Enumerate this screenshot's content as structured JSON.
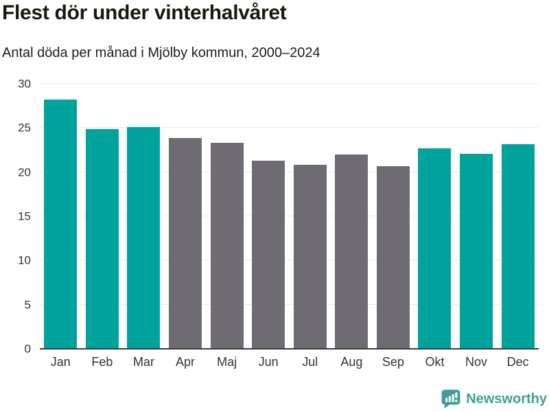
{
  "header": {
    "title": "Flest dör under vinterhalvåret",
    "subtitle": "Antal döda per månad i Mjölby kommun, 2000–2024"
  },
  "chart_data": {
    "type": "bar",
    "title": "Flest dör under vinterhalvåret",
    "subtitle": "Antal döda per månad i Mjölby kommun, 2000–2024",
    "categories": [
      "Jan",
      "Feb",
      "Mar",
      "Apr",
      "Maj",
      "Jun",
      "Jul",
      "Aug",
      "Sep",
      "Okt",
      "Nov",
      "Dec"
    ],
    "values": [
      28.2,
      24.9,
      25.1,
      23.9,
      23.3,
      21.3,
      20.8,
      22.0,
      20.7,
      22.7,
      22.1,
      23.2
    ],
    "bar_colors": [
      "#00a39c",
      "#00a39c",
      "#00a39c",
      "#6e6c72",
      "#6e6c72",
      "#6e6c72",
      "#6e6c72",
      "#6e6c72",
      "#6e6c72",
      "#00a39c",
      "#00a39c",
      "#00a39c"
    ],
    "highlight_color": "#00a39c",
    "base_color": "#6e6c72",
    "xlabel": "",
    "ylabel": "",
    "ylim": [
      0,
      30
    ],
    "yticks": [
      0,
      5,
      10,
      15,
      20,
      25,
      30
    ],
    "grid": true,
    "legend": false,
    "gridline_color": "#e7e7e7",
    "axis_line_color": "#3b3b3b"
  },
  "footer": {
    "brand": "Newsworthy",
    "brand_color": "#3f9e9a",
    "logo_icon": "bar-chart-speech-bubble-icon"
  }
}
